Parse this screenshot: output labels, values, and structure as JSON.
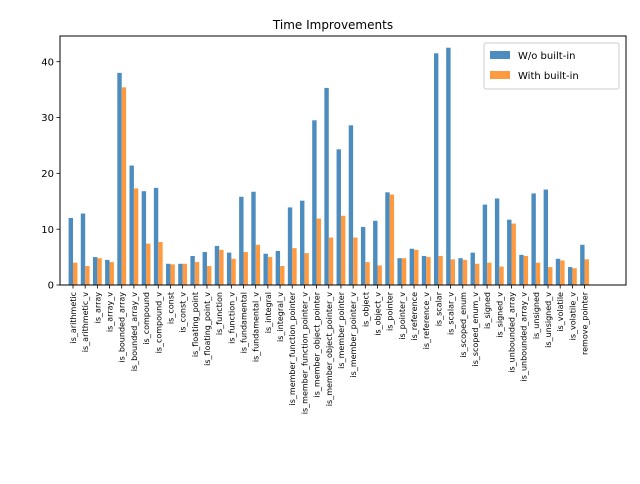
{
  "chart_data": {
    "type": "bar",
    "title": "Time Improvements",
    "xlabel": "",
    "ylabel": "",
    "ylim": [
      0,
      44.6
    ],
    "yticks": [
      0,
      10,
      20,
      30,
      40
    ],
    "grid": false,
    "legend_position": "top-right",
    "categories": [
      "is_arithmetic",
      "is_arithmetic_v",
      "is_array",
      "is_array_v",
      "is_bounded_array",
      "is_bounded_array_v",
      "is_compound",
      "is_compound_v",
      "is_const",
      "is_const_v",
      "is_floating_point",
      "is_floating_point_v",
      "is_function",
      "is_function_v",
      "is_fundamental",
      "is_fundamental_v",
      "is_integral",
      "is_integral_v",
      "is_member_function_pointer",
      "is_member_function_pointer_v",
      "is_member_object_pointer",
      "is_member_object_pointer_v",
      "is_member_pointer",
      "is_member_pointer_v",
      "is_object",
      "is_object_v",
      "is_pointer",
      "is_pointer_v",
      "is_reference",
      "is_reference_v",
      "is_scalar",
      "is_scalar_v",
      "is_scoped_enum",
      "is_scoped_enum_v",
      "is_signed",
      "is_signed_v",
      "is_unbounded_array",
      "is_unbounded_array_v",
      "is_unsigned",
      "is_unsigned_v",
      "is_volatile",
      "is_volatile_v",
      "remove_pointer"
    ],
    "series": [
      {
        "name": "W/o built-in",
        "color": "#4c8cbf",
        "values": [
          12.0,
          12.8,
          5.0,
          4.5,
          38.0,
          21.4,
          16.8,
          17.4,
          3.8,
          3.8,
          5.2,
          5.9,
          7.0,
          5.8,
          15.8,
          16.7,
          5.6,
          6.1,
          13.9,
          15.1,
          29.5,
          35.3,
          24.3,
          28.6,
          10.4,
          11.5,
          16.6,
          4.8,
          6.5,
          5.2,
          41.5,
          42.5,
          4.8,
          5.8,
          14.4,
          15.5,
          11.7,
          5.4,
          16.4,
          17.1,
          4.7,
          3.2,
          7.2
        ]
      },
      {
        "name": "With built-in",
        "color": "#ff9a40",
        "values": [
          4.0,
          3.4,
          4.8,
          4.1,
          35.4,
          17.3,
          7.4,
          7.7,
          3.7,
          3.8,
          4.1,
          3.4,
          6.3,
          4.7,
          5.9,
          7.2,
          5.0,
          3.4,
          6.6,
          5.7,
          11.9,
          8.5,
          12.4,
          8.5,
          4.1,
          3.5,
          16.2,
          4.8,
          6.3,
          5.0,
          5.2,
          4.6,
          4.5,
          3.8,
          4.0,
          3.3,
          11.0,
          5.2,
          4.0,
          3.2,
          4.4,
          3.0,
          4.6
        ]
      }
    ]
  }
}
